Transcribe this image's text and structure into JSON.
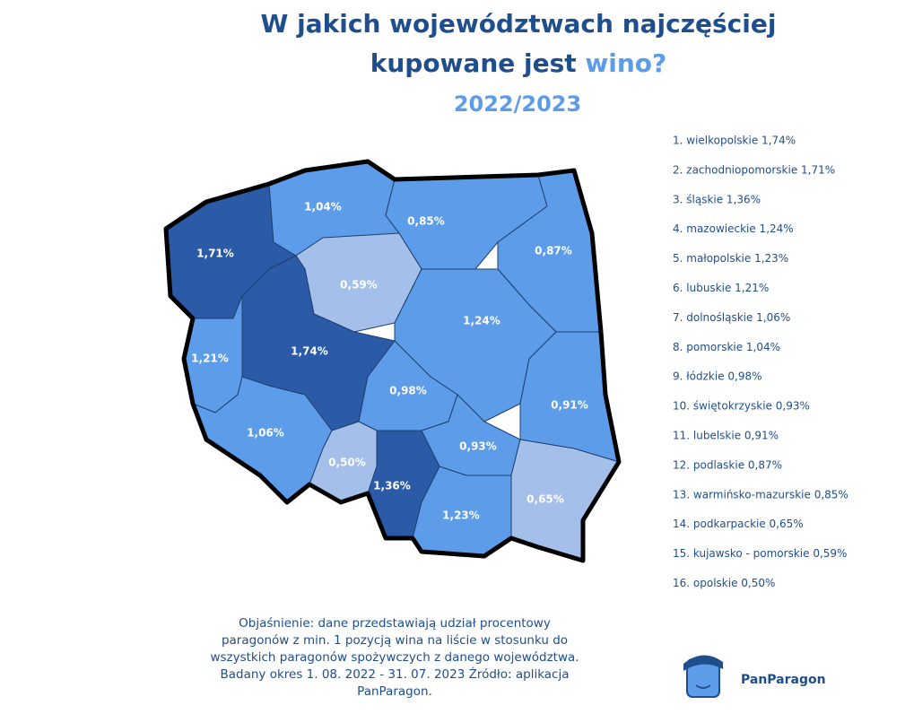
{
  "header": {
    "title_line1": "W jakich województwach najczęściej",
    "title_line2": "kupowane jest",
    "title_highlight": "wino?",
    "subtitle": "2022/2023"
  },
  "map": {
    "regions": [
      {
        "label": "1,71%",
        "color": "#2b5ba6"
      },
      {
        "label": "1,04%",
        "color": "#5d9ce8"
      },
      {
        "label": "0,85%",
        "color": "#5d9ce8"
      },
      {
        "label": "0,87%",
        "color": "#5d9ce8"
      },
      {
        "label": "0,59%",
        "color": "#a4c0ea"
      },
      {
        "label": "1,24%",
        "color": "#5d9ce8"
      },
      {
        "label": "1,21%",
        "color": "#5d9ce8"
      },
      {
        "label": "1,74%",
        "color": "#2b5ba6"
      },
      {
        "label": "0,98%",
        "color": "#5d9ce8"
      },
      {
        "label": "0,91%",
        "color": "#5d9ce8"
      },
      {
        "label": "1,06%",
        "color": "#5d9ce8"
      },
      {
        "label": "0,50%",
        "color": "#a4c0ea"
      },
      {
        "label": "1,36%",
        "color": "#2b5ba6"
      },
      {
        "label": "0,93%",
        "color": "#5d9ce8"
      },
      {
        "label": "1,23%",
        "color": "#5d9ce8"
      },
      {
        "label": "0,65%",
        "color": "#a4c0ea"
      }
    ]
  },
  "ranking": [
    "1. wielkopolskie 1,74%",
    "2. zachodniopomorskie 1,71%",
    "3. śląskie 1,36%",
    "4. mazowieckie 1,24%",
    "5. małopolskie 1,23%",
    "6. lubuskie 1,21%",
    "7. dolnośląskie 1,06%",
    "8. pomorskie 1,04%",
    "9. łódzkie 0,98%",
    "10. świętokrzyskie 0,93%",
    "11. lubelskie 0,91%",
    "12. podlaskie 0,87%",
    "13. warmińsko-mazurskie 0,85%",
    "14. podkarpackie 0,65%",
    "15. kujawsko - pomorskie 0,59%",
    "16. opolskie 0,50%"
  ],
  "footnote": [
    "Objaśnienie: dane przedstawiają udział procentowy",
    "paragonów z min. 1 pozycją wina na liście w stosunku do",
    "wszystkich paragonów spożywczych z danego województwa.",
    "Badany okres 1. 08. 2022 - 31. 07. 2023 Źródło:  aplikacja",
    "PanParagon."
  ],
  "logo": {
    "text": "PanParagon"
  }
}
